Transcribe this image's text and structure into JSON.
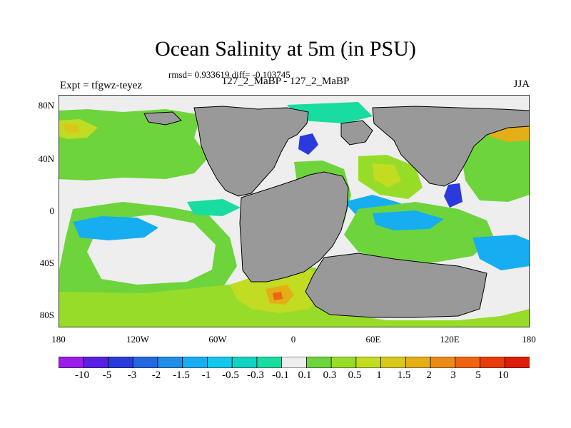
{
  "title": "Ocean Salinity at 5m (in PSU)",
  "stats_line": "rmsd= 0.933619 diff= -0.103745",
  "left_label": "Expt = tfgwz-teyez",
  "center_label": "127_2_MaBP - 127_2_MaBP",
  "right_label": "JJA",
  "lat_ticks": [
    "80N",
    "40N",
    "0",
    "40S",
    "80S"
  ],
  "lon_ticks": [
    "180",
    "120W",
    "60W",
    "0",
    "60E",
    "120E",
    "180"
  ],
  "colorbar": {
    "labels": [
      "-10",
      "-5",
      "-3",
      "-2",
      "-1.5",
      "-1",
      "-0.5",
      "-0.3",
      "-0.1",
      "0.1",
      "0.3",
      "0.5",
      "1",
      "1.5",
      "2",
      "3",
      "5",
      "10"
    ],
    "colors": [
      "#9a1ee6",
      "#5a1ee0",
      "#2a3adc",
      "#2468e0",
      "#1e8ee6",
      "#16aef0",
      "#14c8ea",
      "#12d2c4",
      "#18dca0",
      "#eeeeee",
      "#6ed43c",
      "#98dc2a",
      "#c2dc22",
      "#d8c81c",
      "#e4ae16",
      "#ea8c14",
      "#ee6410",
      "#e83c0c",
      "#dc1e08"
    ]
  },
  "map_colors": {
    "land": "#999999",
    "neutral_ocean": "#eeeeee"
  }
}
